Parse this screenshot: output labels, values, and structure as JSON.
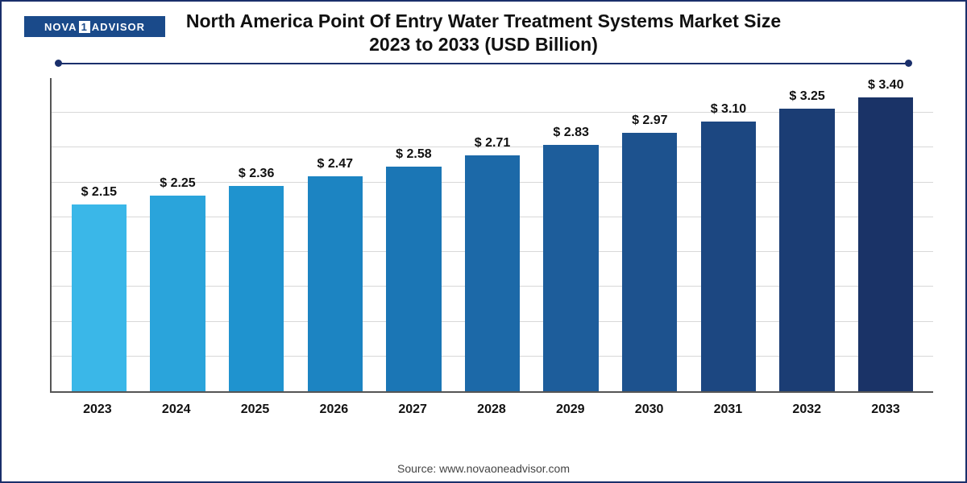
{
  "logo": {
    "part1": "NOVA",
    "part2": "1",
    "part3": "ADVISOR"
  },
  "title": "North America Point Of Entry Water Treatment Systems Market Size 2023 to 2033 (USD Billion)",
  "source": "Source: www.novaoneadvisor.com",
  "chart": {
    "type": "bar",
    "ylim_max": 3.6,
    "grid_count": 8,
    "grid_color": "#d8d8d8",
    "axis_color": "#555555",
    "background_color": "#ffffff",
    "label_fontsize": 16,
    "label_fontweight": "700",
    "label_color": "#111111",
    "bar_width_pct": 70,
    "bars": [
      {
        "year": "2023",
        "value": 2.15,
        "label": "$ 2.15",
        "color": "#3ab7e8"
      },
      {
        "year": "2024",
        "value": 2.25,
        "label": "$ 2.25",
        "color": "#2aa4db"
      },
      {
        "year": "2025",
        "value": 2.36,
        "label": "$ 2.36",
        "color": "#1f93cf"
      },
      {
        "year": "2026",
        "value": 2.47,
        "label": "$ 2.47",
        "color": "#1c84c2"
      },
      {
        "year": "2027",
        "value": 2.58,
        "label": "$ 2.58",
        "color": "#1b76b5"
      },
      {
        "year": "2028",
        "value": 2.71,
        "label": "$ 2.71",
        "color": "#1c69a8"
      },
      {
        "year": "2029",
        "value": 2.83,
        "label": "$ 2.83",
        "color": "#1d5d9b"
      },
      {
        "year": "2030",
        "value": 2.97,
        "label": "$ 2.97",
        "color": "#1d528e"
      },
      {
        "year": "2031",
        "value": 3.1,
        "label": "$ 3.10",
        "color": "#1c4781"
      },
      {
        "year": "2032",
        "value": 3.25,
        "label": "$ 3.25",
        "color": "#1b3d74"
      },
      {
        "year": "2033",
        "value": 3.4,
        "label": "$ 3.40",
        "color": "#1a3367"
      }
    ]
  }
}
